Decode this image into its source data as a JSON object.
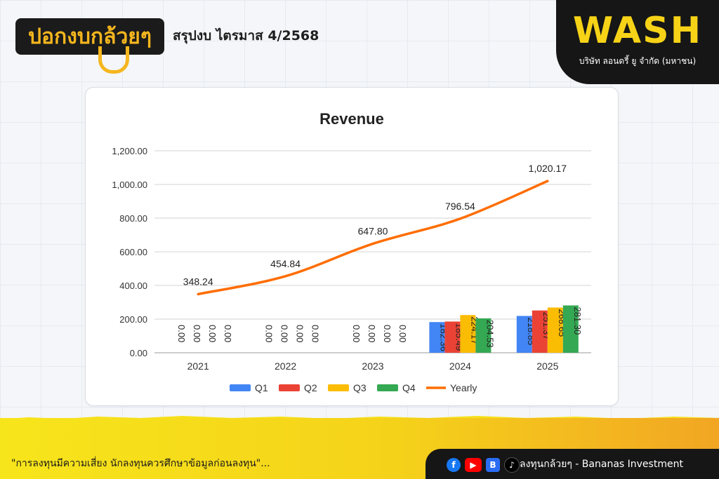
{
  "header": {
    "logo_text": "ปอกงบกล้วยๆ",
    "title": "สรุปงบ ไตรมาส 4/2568"
  },
  "brand": {
    "name": "WASH",
    "subtitle": "บริษัท ลอนดรี้ ยู จำกัด (มหาชน)"
  },
  "footer": {
    "disclaimer": "\"การลงทุนมีความเสี่ยง นักลงทุนควรศึกษาข้อมูลก่อนลงทุน\"...",
    "social_text": "ลงทุนกล้วยๆ - Bananas Investment",
    "icons": [
      "facebook-icon",
      "youtube-icon",
      "blockdit-icon",
      "tiktok-icon"
    ]
  },
  "colors": {
    "q1": "#4285f4",
    "q2": "#ea4335",
    "q3": "#fbbc04",
    "q4": "#34a853",
    "yearly": "#ff6d01"
  },
  "chart_data": {
    "type": "bar",
    "title": "Revenue",
    "categories": [
      "2021",
      "2022",
      "2023",
      "2024",
      "2025"
    ],
    "ylim": [
      0,
      1200
    ],
    "yticks": [
      "0.00",
      "200.00",
      "400.00",
      "600.00",
      "800.00",
      "1,000.00",
      "1,200.00"
    ],
    "grid": true,
    "legend_position": "bottom",
    "series": [
      {
        "name": "Q1",
        "type": "bar",
        "values": [
          0,
          0,
          0,
          182.36,
          218.85
        ],
        "labels": [
          "0.00",
          "0.00",
          "0.00",
          "182.36",
          "218.85"
        ]
      },
      {
        "name": "Q2",
        "type": "bar",
        "values": [
          0,
          0,
          0,
          185.49,
          251.37
        ],
        "labels": [
          "0.00",
          "0.00",
          "0.00",
          "185.49",
          "251.37"
        ]
      },
      {
        "name": "Q3",
        "type": "bar",
        "values": [
          0,
          0,
          0,
          224.17,
          268.65
        ],
        "labels": [
          "0.00",
          "0.00",
          "0.00",
          "224.17",
          "268.65"
        ]
      },
      {
        "name": "Q4",
        "type": "bar",
        "values": [
          0,
          0,
          0,
          204.53,
          281.3
        ],
        "labels": [
          "0.00",
          "0.00",
          "0.00",
          "204.53",
          "281.30"
        ]
      },
      {
        "name": "Yearly",
        "type": "line",
        "values": [
          348.24,
          454.84,
          647.8,
          796.54,
          1020.17
        ],
        "labels": [
          "348.24",
          "454.84",
          "647.80",
          "796.54",
          "1,020.17"
        ]
      }
    ]
  }
}
